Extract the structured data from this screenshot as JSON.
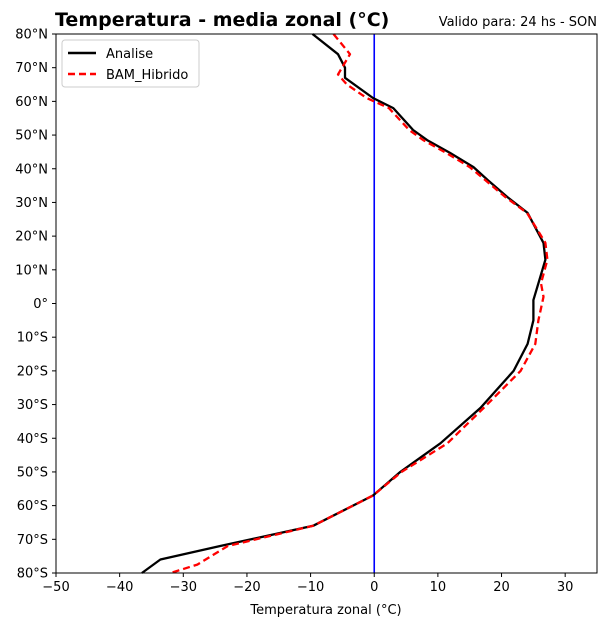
{
  "chart_data": {
    "type": "line",
    "title": "Temperatura - media zonal (°C)",
    "subtitle": "Valido para: 24 hs - SON",
    "xlabel": "Temperatura zonal (°C)",
    "ylabel": "",
    "xlim": [
      -50,
      35
    ],
    "ylim": [
      -80,
      80
    ],
    "xticks": [
      -50,
      -40,
      -30,
      -20,
      -10,
      0,
      10,
      20,
      30
    ],
    "xtick_labels": [
      "−50",
      "−40",
      "−30",
      "−20",
      "−10",
      "0",
      "10",
      "20",
      "30"
    ],
    "yticks": [
      80,
      70,
      60,
      50,
      40,
      30,
      20,
      10,
      0,
      -10,
      -20,
      -30,
      -40,
      -50,
      -60,
      -70,
      -80
    ],
    "ytick_labels": [
      "80°N",
      "70°N",
      "60°N",
      "50°N",
      "40°N",
      "30°N",
      "20°N",
      "10°N",
      "0°",
      "10°S",
      "20°S",
      "30°S",
      "40°S",
      "50°S",
      "60°S",
      "70°S",
      "80°S"
    ],
    "grid": false,
    "legend_position": "top-left",
    "reference_line": {
      "x": 0,
      "color": "#0000ff"
    },
    "series": [
      {
        "name": "Analise",
        "color": "#000000",
        "style": "solid",
        "lat": [
          80,
          74,
          70,
          67,
          61,
          58,
          51.5,
          48.5,
          44.7,
          40.5,
          36.7,
          31.6,
          26.9,
          18,
          13,
          6,
          1,
          -5,
          -12,
          -20,
          -31,
          -41.5,
          -50,
          -57,
          -66,
          -72,
          -76,
          -80
        ],
        "temp": [
          -9.7,
          -5.7,
          -4.6,
          -4.6,
          -0.2,
          3.0,
          6.1,
          8.3,
          11.9,
          15.6,
          17.8,
          20.9,
          24.1,
          26.6,
          26.9,
          25.8,
          25.0,
          25.0,
          24.1,
          21.9,
          16.7,
          10.4,
          4.1,
          -0.2,
          -9.6,
          -24.2,
          -33.6,
          -36.5
        ]
      },
      {
        "name": "BAM_Hibrido",
        "color": "#ff0000",
        "style": "dashed",
        "lat": [
          80,
          74,
          68,
          65,
          61,
          58,
          51.5,
          48.5,
          44.7,
          40.5,
          36.7,
          31.6,
          26.9,
          18,
          13,
          6,
          2,
          -5,
          -12,
          -20,
          -31,
          -41.5,
          -50,
          -57,
          -66,
          -72,
          -77.5,
          -80
        ],
        "temp": [
          -6.4,
          -3.8,
          -5.7,
          -4.3,
          -1.2,
          2.3,
          5.5,
          7.7,
          11.3,
          15.0,
          17.4,
          20.6,
          24.0,
          26.9,
          27.2,
          26.2,
          26.6,
          25.8,
          25.3,
          23.0,
          17.2,
          11.5,
          4.3,
          -0.2,
          -9.6,
          -23.0,
          -27.8,
          -32.0
        ]
      }
    ]
  }
}
